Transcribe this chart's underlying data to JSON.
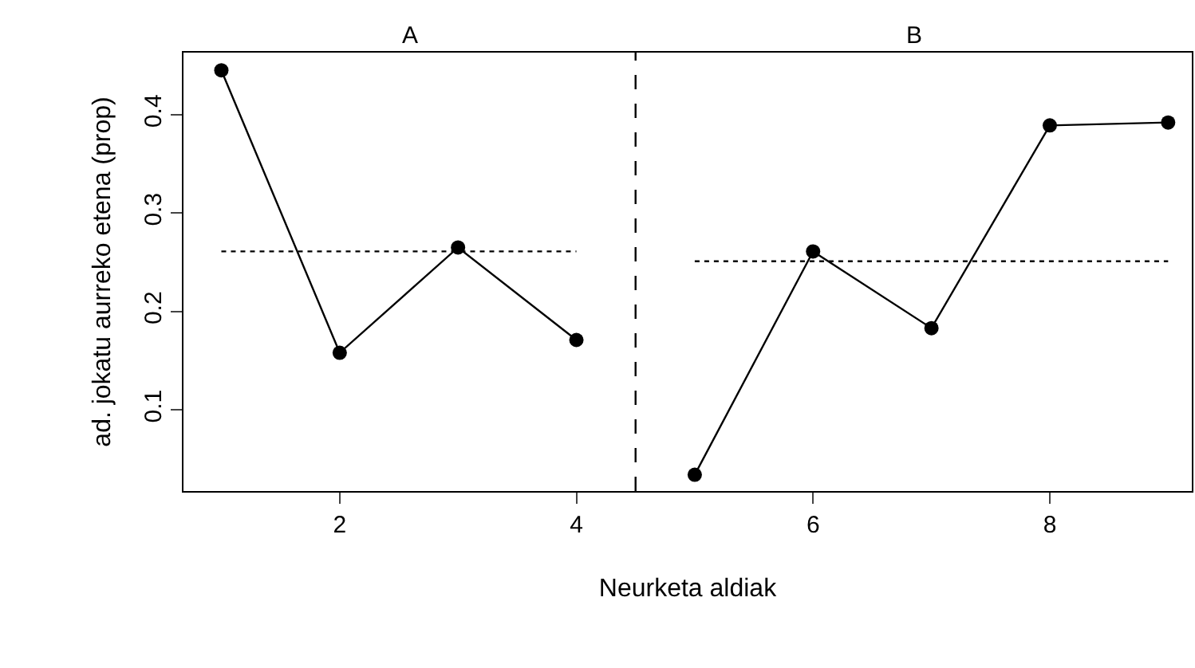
{
  "chart_data": {
    "type": "line",
    "xlabel": "Neurketa aldiak",
    "ylabel": "ad. jokatu aurreko etena (prop)",
    "annotations": [
      "A",
      "B"
    ],
    "series": [
      {
        "color": "#000000",
        "x": [
          1,
          2,
          3,
          4
        ],
        "values": [
          0.445,
          0.158,
          0.265,
          0.171
        ],
        "marker": "circle",
        "line_style": "solid"
      },
      {
        "color": "#000000",
        "x": [
          5,
          6,
          7,
          8,
          9
        ],
        "values": [
          0.034,
          0.261,
          0.183,
          0.389,
          0.392
        ],
        "marker": "circle",
        "line_style": "solid"
      },
      {
        "color": "#000000",
        "x": [
          1,
          4
        ],
        "values": [
          0.261,
          0.261
        ],
        "marker": "none",
        "line_style": "dotted"
      },
      {
        "color": "#000000",
        "x": [
          5,
          9
        ],
        "values": [
          0.251,
          0.251
        ],
        "marker": "none",
        "line_style": "dotted"
      }
    ],
    "ref_lines": [
      {
        "axis": "x",
        "value": 4.5,
        "color": "#000000",
        "line_style": "dashed"
      }
    ],
    "xlim": [
      0.68,
      9.2
    ],
    "xticks": [
      2,
      4,
      6,
      8
    ],
    "ylim": [
      0.0175,
      0.463
    ],
    "yticks": [
      0.1,
      0.2,
      0.3,
      0.4
    ]
  }
}
